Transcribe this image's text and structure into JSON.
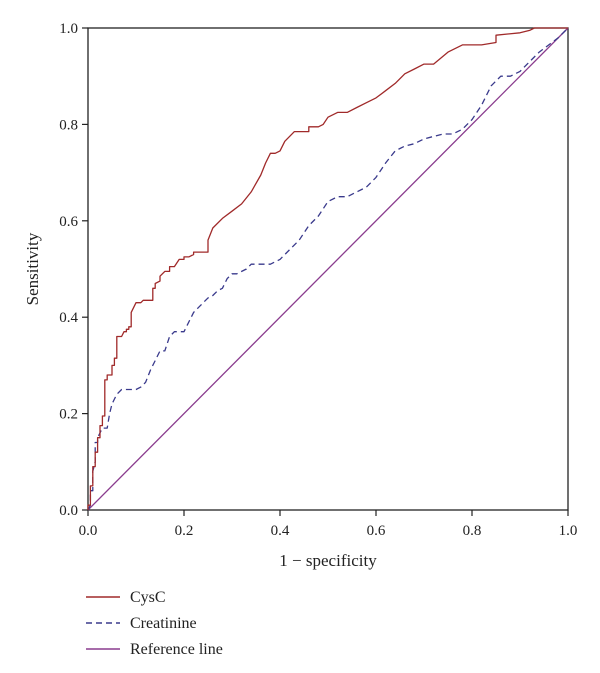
{
  "chart_data": {
    "type": "line",
    "title": "",
    "xlabel": "1 − specificity",
    "ylabel": "Sensitivity",
    "xlim": [
      0,
      1
    ],
    "ylim": [
      0,
      1
    ],
    "xticks": [
      0.0,
      0.2,
      0.4,
      0.6,
      0.8,
      1.0
    ],
    "yticks": [
      0.0,
      0.2,
      0.4,
      0.6,
      0.8,
      1.0
    ],
    "xtick_labels": [
      "0.0",
      "0.2",
      "0.4",
      "0.6",
      "0.8",
      "1.0"
    ],
    "ytick_labels": [
      "0.0",
      "0.2",
      "0.4",
      "0.6",
      "0.8",
      "1.0"
    ],
    "grid": false,
    "legend_position": "bottom-left",
    "series": [
      {
        "name": "CysC",
        "color": "#a02a2a",
        "style": "solid",
        "x": [
          0,
          0,
          0.005,
          0.005,
          0.01,
          0.01,
          0.015,
          0.015,
          0.02,
          0.02,
          0.025,
          0.025,
          0.03,
          0.03,
          0.035,
          0.035,
          0.04,
          0.04,
          0.05,
          0.05,
          0.055,
          0.055,
          0.06,
          0.06,
          0.07,
          0.075,
          0.08,
          0.08,
          0.085,
          0.085,
          0.09,
          0.09,
          0.1,
          0.11,
          0.115,
          0.115,
          0.125,
          0.135,
          0.135,
          0.14,
          0.14,
          0.15,
          0.15,
          0.16,
          0.17,
          0.17,
          0.18,
          0.19,
          0.19,
          0.2,
          0.2,
          0.21,
          0.22,
          0.22,
          0.25,
          0.25,
          0.26,
          0.28,
          0.3,
          0.32,
          0.34,
          0.36,
          0.37,
          0.38,
          0.39,
          0.4,
          0.41,
          0.42,
          0.43,
          0.44,
          0.46,
          0.46,
          0.48,
          0.49,
          0.5,
          0.52,
          0.54,
          0.56,
          0.58,
          0.6,
          0.62,
          0.64,
          0.66,
          0.68,
          0.7,
          0.72,
          0.75,
          0.78,
          0.82,
          0.85,
          0.85,
          0.9,
          0.92,
          0.93,
          0.96,
          1.0
        ],
        "y": [
          0,
          0.01,
          0.01,
          0.05,
          0.05,
          0.09,
          0.09,
          0.12,
          0.12,
          0.15,
          0.15,
          0.175,
          0.175,
          0.195,
          0.195,
          0.27,
          0.27,
          0.28,
          0.28,
          0.3,
          0.3,
          0.315,
          0.315,
          0.36,
          0.36,
          0.37,
          0.37,
          0.375,
          0.375,
          0.38,
          0.38,
          0.41,
          0.43,
          0.43,
          0.435,
          0.435,
          0.435,
          0.435,
          0.46,
          0.46,
          0.47,
          0.475,
          0.485,
          0.495,
          0.495,
          0.505,
          0.505,
          0.52,
          0.52,
          0.52,
          0.525,
          0.525,
          0.53,
          0.535,
          0.535,
          0.56,
          0.585,
          0.605,
          0.62,
          0.635,
          0.66,
          0.695,
          0.72,
          0.74,
          0.74,
          0.745,
          0.765,
          0.775,
          0.785,
          0.785,
          0.785,
          0.795,
          0.795,
          0.8,
          0.815,
          0.825,
          0.825,
          0.835,
          0.845,
          0.855,
          0.87,
          0.885,
          0.905,
          0.915,
          0.925,
          0.925,
          0.95,
          0.965,
          0.965,
          0.97,
          0.985,
          0.99,
          0.995,
          1.0,
          1.0,
          1.0
        ]
      },
      {
        "name": "Creatinine",
        "color": "#3a3a8c",
        "style": "dashed",
        "x": [
          0,
          0.005,
          0.005,
          0.01,
          0.01,
          0.015,
          0.015,
          0.02,
          0.02,
          0.03,
          0.04,
          0.045,
          0.05,
          0.055,
          0.06,
          0.07,
          0.09,
          0.1,
          0.11,
          0.12,
          0.13,
          0.14,
          0.15,
          0.16,
          0.17,
          0.18,
          0.2,
          0.21,
          0.22,
          0.23,
          0.24,
          0.25,
          0.26,
          0.27,
          0.28,
          0.29,
          0.3,
          0.31,
          0.33,
          0.34,
          0.36,
          0.38,
          0.4,
          0.42,
          0.44,
          0.46,
          0.48,
          0.5,
          0.52,
          0.54,
          0.56,
          0.58,
          0.6,
          0.62,
          0.64,
          0.66,
          0.68,
          0.7,
          0.72,
          0.74,
          0.76,
          0.78,
          0.8,
          0.82,
          0.84,
          0.86,
          0.88,
          0.9,
          0.92,
          0.94,
          0.96,
          0.98,
          1.0
        ],
        "y": [
          0,
          0.01,
          0.04,
          0.04,
          0.08,
          0.1,
          0.14,
          0.14,
          0.15,
          0.17,
          0.17,
          0.2,
          0.22,
          0.23,
          0.24,
          0.25,
          0.25,
          0.25,
          0.255,
          0.265,
          0.29,
          0.31,
          0.33,
          0.33,
          0.36,
          0.37,
          0.37,
          0.39,
          0.41,
          0.42,
          0.43,
          0.44,
          0.445,
          0.455,
          0.46,
          0.48,
          0.49,
          0.49,
          0.5,
          0.51,
          0.51,
          0.51,
          0.52,
          0.54,
          0.56,
          0.59,
          0.61,
          0.64,
          0.65,
          0.65,
          0.66,
          0.67,
          0.69,
          0.72,
          0.745,
          0.755,
          0.76,
          0.77,
          0.775,
          0.78,
          0.78,
          0.79,
          0.81,
          0.84,
          0.88,
          0.9,
          0.9,
          0.91,
          0.93,
          0.95,
          0.965,
          0.98,
          1.0
        ]
      },
      {
        "name": "Reference line",
        "color": "#8a3c8e",
        "style": "solid",
        "x": [
          0,
          1
        ],
        "y": [
          0,
          1
        ]
      }
    ]
  }
}
